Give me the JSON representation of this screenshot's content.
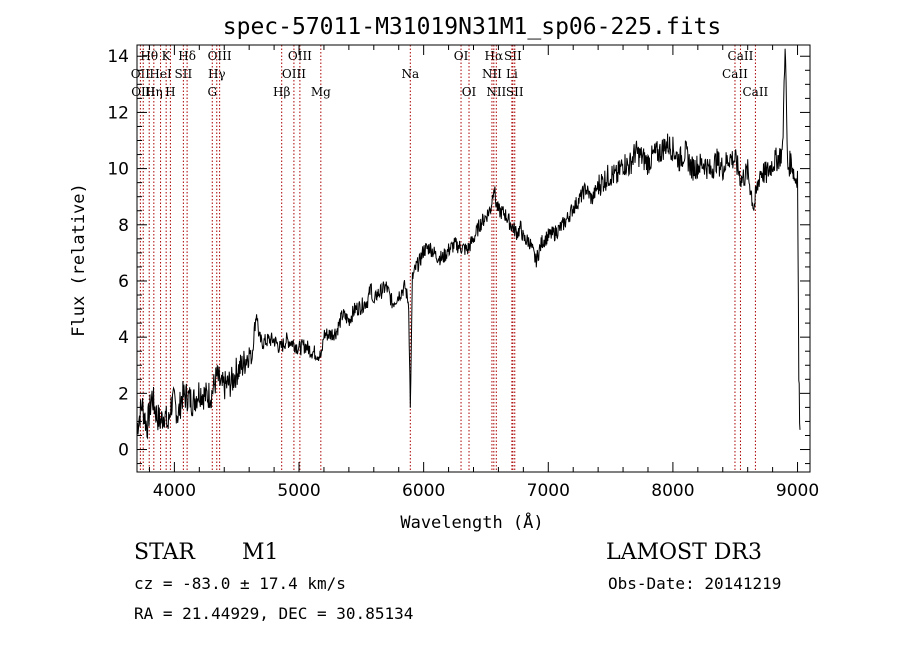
{
  "chart_data": {
    "type": "line",
    "title": "spec-57011-M31019N31M1_sp06-225.fits",
    "xlabel": "Wavelength (Å)",
    "ylabel": "Flux (relative)",
    "xlim": [
      3700,
      9100
    ],
    "ylim": [
      -0.8,
      14.4
    ],
    "x_ticks": [
      4000,
      5000,
      6000,
      7000,
      8000,
      9000
    ],
    "x_tick_labels": [
      "4000",
      "5000",
      "6000",
      "7000",
      "8000",
      "9000"
    ],
    "y_ticks": [
      0,
      2,
      4,
      6,
      8,
      10,
      12,
      14
    ],
    "y_tick_labels": [
      "0",
      "2",
      "4",
      "6",
      "8",
      "10",
      "12",
      "14"
    ],
    "grid": false,
    "line_color": "#000000",
    "marker_color": "#aa0000",
    "series": [
      {
        "name": "spectrum",
        "x": [
          3700,
          3740,
          3780,
          3820,
          3860,
          3890,
          3920,
          3950,
          3970,
          4000,
          4030,
          4060,
          4100,
          4150,
          4200,
          4250,
          4300,
          4340,
          4380,
          4420,
          4460,
          4500,
          4550,
          4600,
          4620,
          4640,
          4660,
          4680,
          4700,
          4760,
          4800,
          4850,
          4900,
          4950,
          5000,
          5050,
          5100,
          5150,
          5180,
          5200,
          5250,
          5300,
          5350,
          5400,
          5450,
          5500,
          5550,
          5580,
          5600,
          5620,
          5650,
          5700,
          5750,
          5800,
          5850,
          5880,
          5893,
          5910,
          5940,
          5970,
          6000,
          6050,
          6100,
          6150,
          6200,
          6250,
          6300,
          6350,
          6400,
          6450,
          6500,
          6540,
          6563,
          6580,
          6600,
          6650,
          6700,
          6750,
          6780,
          6800,
          6850,
          6900,
          6950,
          7000,
          7050,
          7100,
          7150,
          7200,
          7250,
          7300,
          7350,
          7400,
          7450,
          7500,
          7550,
          7600,
          7650,
          7700,
          7750,
          7800,
          7850,
          7900,
          7950,
          8000,
          8050,
          8100,
          8150,
          8200,
          8250,
          8300,
          8350,
          8400,
          8450,
          8500,
          8550,
          8600,
          8650,
          8700,
          8750,
          8800,
          8850,
          8880,
          8900,
          8920,
          8950,
          8980,
          9000,
          9010,
          9020
        ],
        "y": [
          0.8,
          1.6,
          0.8,
          1.9,
          1.2,
          1.0,
          1.3,
          0.8,
          1.6,
          1.7,
          1.2,
          1.9,
          1.9,
          1.7,
          2.1,
          1.9,
          2.0,
          2.6,
          2.2,
          2.3,
          2.4,
          2.8,
          3.0,
          3.5,
          3.2,
          4.2,
          4.9,
          4.0,
          3.8,
          3.9,
          3.9,
          3.6,
          3.9,
          3.8,
          3.6,
          3.7,
          3.5,
          3.4,
          3.3,
          4.1,
          4.1,
          4.2,
          4.8,
          4.6,
          5.0,
          5.1,
          5.3,
          5.8,
          5.1,
          5.5,
          5.6,
          5.8,
          5.2,
          5.5,
          5.8,
          5.2,
          1.4,
          6.1,
          6.5,
          6.7,
          7.1,
          7.2,
          6.9,
          6.8,
          7.1,
          7.3,
          7.2,
          7.1,
          7.5,
          8.0,
          8.3,
          8.6,
          9.4,
          8.8,
          8.5,
          8.4,
          8.0,
          7.7,
          7.9,
          7.5,
          7.4,
          6.7,
          7.4,
          7.6,
          7.7,
          7.9,
          8.2,
          8.6,
          8.9,
          9.3,
          8.9,
          9.4,
          9.6,
          9.8,
          9.7,
          10.2,
          10.1,
          10.6,
          10.4,
          10.2,
          10.5,
          10.6,
          10.9,
          10.7,
          10.3,
          10.6,
          10.0,
          10.1,
          10.2,
          9.9,
          10.3,
          10.0,
          10.4,
          10.3,
          9.6,
          9.9,
          8.6,
          9.9,
          9.8,
          10.2,
          10.4,
          10.6,
          14.6,
          10.0,
          10.3,
          9.6,
          9.8,
          2.6,
          0.7
        ]
      }
    ],
    "line_markers": [
      {
        "label": "Hθ",
        "x": 3798,
        "row": 1
      },
      {
        "label": "OII",
        "x": 3727,
        "row": 2
      },
      {
        "label": "OIII",
        "x": 3750,
        "row": 3
      },
      {
        "label": "HeI",
        "x": 3889,
        "row": 2
      },
      {
        "label": "Hη",
        "x": 3835,
        "row": 3
      },
      {
        "label": "K",
        "x": 3934,
        "row": 1
      },
      {
        "label": "H",
        "x": 3968,
        "row": 3
      },
      {
        "label": "SII",
        "x": 4072,
        "row": 2
      },
      {
        "label": "Hδ",
        "x": 4102,
        "row": 1
      },
      {
        "label": "OIII",
        "x": 4363,
        "row": 1
      },
      {
        "label": "Hγ",
        "x": 4340,
        "row": 2
      },
      {
        "label": "G",
        "x": 4304,
        "row": 3
      },
      {
        "label": "Hβ",
        "x": 4861,
        "row": 3
      },
      {
        "label": "OIII",
        "x": 5007,
        "row": 1
      },
      {
        "label": "OIII",
        "x": 4959,
        "row": 2
      },
      {
        "label": "Mg",
        "x": 5175,
        "row": 3
      },
      {
        "label": "Na",
        "x": 5893,
        "row": 2
      },
      {
        "label": "OI",
        "x": 6300,
        "row": 1
      },
      {
        "label": "OI",
        "x": 6364,
        "row": 3
      },
      {
        "label": "Hα",
        "x": 6563,
        "row": 1
      },
      {
        "label": "NII",
        "x": 6548,
        "row": 2
      },
      {
        "label": "NII",
        "x": 6583,
        "row": 3
      },
      {
        "label": "SII",
        "x": 6716,
        "row": 1
      },
      {
        "label": "Li",
        "x": 6708,
        "row": 2
      },
      {
        "label": "SII",
        "x": 6731,
        "row": 3
      },
      {
        "label": "CaII",
        "x": 8542,
        "row": 1
      },
      {
        "label": "CaII",
        "x": 8498,
        "row": 2
      },
      {
        "label": "CaII",
        "x": 8662,
        "row": 3
      }
    ]
  },
  "info": {
    "object_class": "STAR",
    "subclass": "M1",
    "survey": "LAMOST DR3",
    "cz": "cz = -83.0 ± 17.4 km/s",
    "obs_date": "Obs-Date: 20141219",
    "coords": "RA =  21.44929, DEC =  30.85134"
  }
}
